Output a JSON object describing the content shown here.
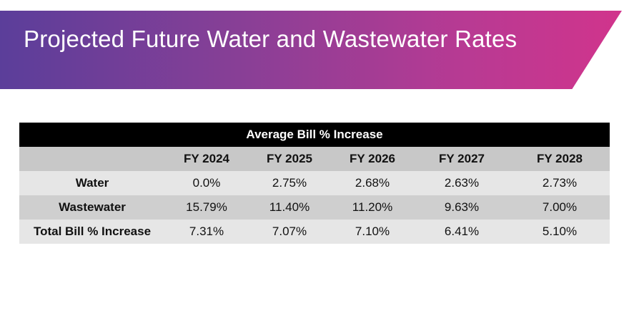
{
  "slide": {
    "title": "Projected Future Water and Wastewater Rates",
    "colors": {
      "banner_start": "#5b3e9a",
      "banner_end": "#d1348c",
      "table_caption_bg": "#000000",
      "table_header_bg": "#c8c8c8",
      "table_row_light": "#e6e6e6",
      "table_row_dark": "#cfcfcf"
    }
  },
  "table": {
    "caption": "Average Bill % Increase",
    "headers": [
      "",
      "FY 2024",
      "FY 2025",
      "FY 2026",
      "FY 2027",
      "FY 2028"
    ],
    "rows": [
      {
        "label": "Water",
        "values": [
          "0.0%",
          "2.75%",
          "2.68%",
          "2.63%",
          "2.73%"
        ]
      },
      {
        "label": "Wastewater",
        "values": [
          "15.79%",
          "11.40%",
          "11.20%",
          "9.63%",
          "7.00%"
        ]
      },
      {
        "label": "Total Bill % Increase",
        "values": [
          "7.31%",
          "7.07%",
          "7.10%",
          "6.41%",
          "5.10%"
        ]
      }
    ]
  }
}
